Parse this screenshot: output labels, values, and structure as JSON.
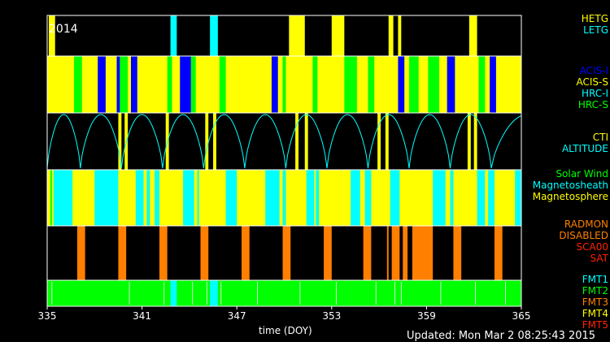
{
  "chart_data": {
    "type": "timeline",
    "year": "2014",
    "xlabel": "time (DOY)",
    "xlim": [
      335,
      365
    ],
    "xticks": [
      335,
      341,
      347,
      353,
      359,
      365
    ],
    "updated": "Updated: Mon Mar  2 08:25:43 2015",
    "colors": {
      "yellow": "#ffff00",
      "cyan": "#00ffff",
      "blue": "#0000ff",
      "green": "#00ff00",
      "orange": "#ff7f00",
      "red": "#ff2200",
      "black": "#000000",
      "white": "#ffffff"
    },
    "panels": [
      {
        "name": "gratings",
        "legend": [
          {
            "label": "HETG",
            "color": "#ffff00"
          },
          {
            "label": "LETG",
            "color": "#00ffff"
          }
        ],
        "background": "#000000",
        "segments": [
          {
            "start": 335.1,
            "end": 335.5,
            "color": "#ffff00"
          },
          {
            "start": 342.8,
            "end": 343.2,
            "color": "#00ffff"
          },
          {
            "start": 345.3,
            "end": 345.8,
            "color": "#00ffff"
          },
          {
            "start": 350.3,
            "end": 351.3,
            "color": "#ffff00"
          },
          {
            "start": 353.0,
            "end": 353.8,
            "color": "#ffff00"
          },
          {
            "start": 356.6,
            "end": 356.9,
            "color": "#ffff00"
          },
          {
            "start": 357.2,
            "end": 357.4,
            "color": "#ffff00"
          },
          {
            "start": 361.7,
            "end": 362.2,
            "color": "#ffff00"
          }
        ]
      },
      {
        "name": "instrument",
        "legend": [
          {
            "label": "ACIS-I",
            "color": "#0000ff"
          },
          {
            "label": "ACIS-S",
            "color": "#ffff00"
          },
          {
            "label": "HRC-I",
            "color": "#00ffff"
          },
          {
            "label": "HRC-S",
            "color": "#00ff00"
          }
        ],
        "background": "#ffff00",
        "segments": [
          {
            "start": 336.7,
            "end": 337.2,
            "color": "#00ff00"
          },
          {
            "start": 338.2,
            "end": 338.7,
            "color": "#0000ff"
          },
          {
            "start": 339.4,
            "end": 339.6,
            "color": "#0000ff"
          },
          {
            "start": 339.6,
            "end": 340.1,
            "color": "#00ff00"
          },
          {
            "start": 340.3,
            "end": 340.7,
            "color": "#0000ff"
          },
          {
            "start": 342.6,
            "end": 342.9,
            "color": "#00ff00"
          },
          {
            "start": 343.4,
            "end": 344.1,
            "color": "#0000ff"
          },
          {
            "start": 344.1,
            "end": 344.4,
            "color": "#00ff00"
          },
          {
            "start": 345.9,
            "end": 346.3,
            "color": "#00ff00"
          },
          {
            "start": 349.2,
            "end": 349.6,
            "color": "#0000ff"
          },
          {
            "start": 349.9,
            "end": 350.1,
            "color": "#00ff00"
          },
          {
            "start": 351.8,
            "end": 352.1,
            "color": "#00ff00"
          },
          {
            "start": 353.8,
            "end": 354.6,
            "color": "#00ff00"
          },
          {
            "start": 355.3,
            "end": 355.7,
            "color": "#00ff00"
          },
          {
            "start": 357.2,
            "end": 357.6,
            "color": "#0000ff"
          },
          {
            "start": 357.9,
            "end": 358.5,
            "color": "#00ff00"
          },
          {
            "start": 359.1,
            "end": 359.8,
            "color": "#00ff00"
          },
          {
            "start": 360.3,
            "end": 360.8,
            "color": "#0000ff"
          },
          {
            "start": 362.3,
            "end": 362.7,
            "color": "#00ff00"
          },
          {
            "start": 363.0,
            "end": 363.4,
            "color": "#0000ff"
          }
        ]
      },
      {
        "name": "altitude",
        "legend": [
          {
            "label": "CTI",
            "color": "#ffff00"
          },
          {
            "label": "ALTITUDE",
            "color": "#00ffff"
          }
        ],
        "background": "#000000",
        "segments": [
          {
            "start": 339.5,
            "end": 339.7,
            "color": "#ffff00"
          },
          {
            "start": 339.9,
            "end": 340.1,
            "color": "#ffff00"
          },
          {
            "start": 342.5,
            "end": 342.7,
            "color": "#ffff00"
          },
          {
            "start": 345.0,
            "end": 345.2,
            "color": "#ffff00"
          },
          {
            "start": 345.5,
            "end": 345.7,
            "color": "#ffff00"
          },
          {
            "start": 350.7,
            "end": 350.9,
            "color": "#ffff00"
          },
          {
            "start": 351.3,
            "end": 351.5,
            "color": "#ffff00"
          },
          {
            "start": 355.9,
            "end": 356.1,
            "color": "#ffff00"
          },
          {
            "start": 356.4,
            "end": 356.6,
            "color": "#ffff00"
          },
          {
            "start": 361.6,
            "end": 361.8,
            "color": "#ffff00"
          },
          {
            "start": 362.0,
            "end": 362.2,
            "color": "#ffff00"
          }
        ],
        "altitude_minima": [
          335.0,
          337.1,
          339.7,
          342.3,
          344.9,
          347.5,
          350.1,
          352.7,
          355.3,
          357.9,
          360.5,
          363.1
        ]
      },
      {
        "name": "environment",
        "legend": [
          {
            "label": "Solar Wind",
            "color": "#00ff00"
          },
          {
            "label": "Magnetosheath",
            "color": "#00ffff"
          },
          {
            "label": "Magnetosphere",
            "color": "#ffff00"
          }
        ],
        "background": "#ffff00",
        "segments": [
          {
            "start": 335.2,
            "end": 335.3,
            "color": "#00ff00"
          },
          {
            "start": 335.4,
            "end": 336.6,
            "color": "#00ffff"
          },
          {
            "start": 338.0,
            "end": 339.5,
            "color": "#00ffff"
          },
          {
            "start": 340.6,
            "end": 341.1,
            "color": "#00ffff"
          },
          {
            "start": 341.3,
            "end": 341.5,
            "color": "#00ffff"
          },
          {
            "start": 341.8,
            "end": 342.1,
            "color": "#00ffff"
          },
          {
            "start": 343.6,
            "end": 344.3,
            "color": "#00ffff"
          },
          {
            "start": 344.5,
            "end": 344.6,
            "color": "#00ffff"
          },
          {
            "start": 346.3,
            "end": 347.0,
            "color": "#00ffff"
          },
          {
            "start": 348.8,
            "end": 349.7,
            "color": "#00ffff"
          },
          {
            "start": 349.9,
            "end": 350.1,
            "color": "#00ffff"
          },
          {
            "start": 351.4,
            "end": 351.9,
            "color": "#00ffff"
          },
          {
            "start": 352.0,
            "end": 352.2,
            "color": "#00ffff"
          },
          {
            "start": 354.2,
            "end": 354.8,
            "color": "#00ffff"
          },
          {
            "start": 355.1,
            "end": 355.5,
            "color": "#00ffff"
          },
          {
            "start": 356.7,
            "end": 357.3,
            "color": "#00ffff"
          },
          {
            "start": 359.4,
            "end": 360.2,
            "color": "#00ffff"
          },
          {
            "start": 360.5,
            "end": 360.7,
            "color": "#00ffff"
          },
          {
            "start": 362.2,
            "end": 362.7,
            "color": "#00ffff"
          },
          {
            "start": 362.9,
            "end": 363.3,
            "color": "#00ffff"
          },
          {
            "start": 364.6,
            "end": 365.0,
            "color": "#00ffff"
          }
        ]
      },
      {
        "name": "radiation",
        "legend": [
          {
            "label": "RADMON",
            "color": "#ff7f00"
          },
          {
            "label": "DISABLED",
            "color": "#ff7f00"
          },
          {
            "label": "SCA00",
            "color": "#ff2200"
          },
          {
            "label": "SAT",
            "color": "#ff2200"
          }
        ],
        "background": "#000000",
        "segments": [
          {
            "start": 336.9,
            "end": 337.4,
            "color": "#ff7f00"
          },
          {
            "start": 339.5,
            "end": 340.0,
            "color": "#ff7f00"
          },
          {
            "start": 342.1,
            "end": 342.6,
            "color": "#ff7f00"
          },
          {
            "start": 344.7,
            "end": 345.2,
            "color": "#ff7f00"
          },
          {
            "start": 347.3,
            "end": 347.8,
            "color": "#ff7f00"
          },
          {
            "start": 349.9,
            "end": 350.4,
            "color": "#ff7f00"
          },
          {
            "start": 352.5,
            "end": 353.0,
            "color": "#ff7f00"
          },
          {
            "start": 355.0,
            "end": 355.5,
            "color": "#ff7f00"
          },
          {
            "start": 356.5,
            "end": 356.6,
            "color": "#ff7f00"
          },
          {
            "start": 356.8,
            "end": 357.3,
            "color": "#ff7f00"
          },
          {
            "start": 357.5,
            "end": 357.8,
            "color": "#ff7f00"
          },
          {
            "start": 358.1,
            "end": 359.4,
            "color": "#ff7f00"
          },
          {
            "start": 360.7,
            "end": 361.2,
            "color": "#ff7f00"
          },
          {
            "start": 363.3,
            "end": 363.8,
            "color": "#ff7f00"
          }
        ]
      },
      {
        "name": "format",
        "legend": [
          {
            "label": "FMT1",
            "color": "#00ffff"
          },
          {
            "label": "FMT2",
            "color": "#00ff00"
          },
          {
            "label": "FMT3",
            "color": "#ff7f00"
          },
          {
            "label": "FMT4",
            "color": "#ffff00"
          },
          {
            "label": "FMT5",
            "color": "#ff2200"
          }
        ],
        "background": "#00ff00",
        "segments": [
          {
            "start": 342.8,
            "end": 343.2,
            "color": "#00ffff"
          },
          {
            "start": 345.3,
            "end": 345.8,
            "color": "#00ffff"
          }
        ],
        "ticks": [
          335.3,
          340.2,
          342.4,
          344.2,
          345.1,
          346.0,
          348.3,
          351.0,
          353.3,
          355.8,
          357.0,
          357.4,
          359.9,
          362.1,
          364.0
        ]
      }
    ]
  }
}
